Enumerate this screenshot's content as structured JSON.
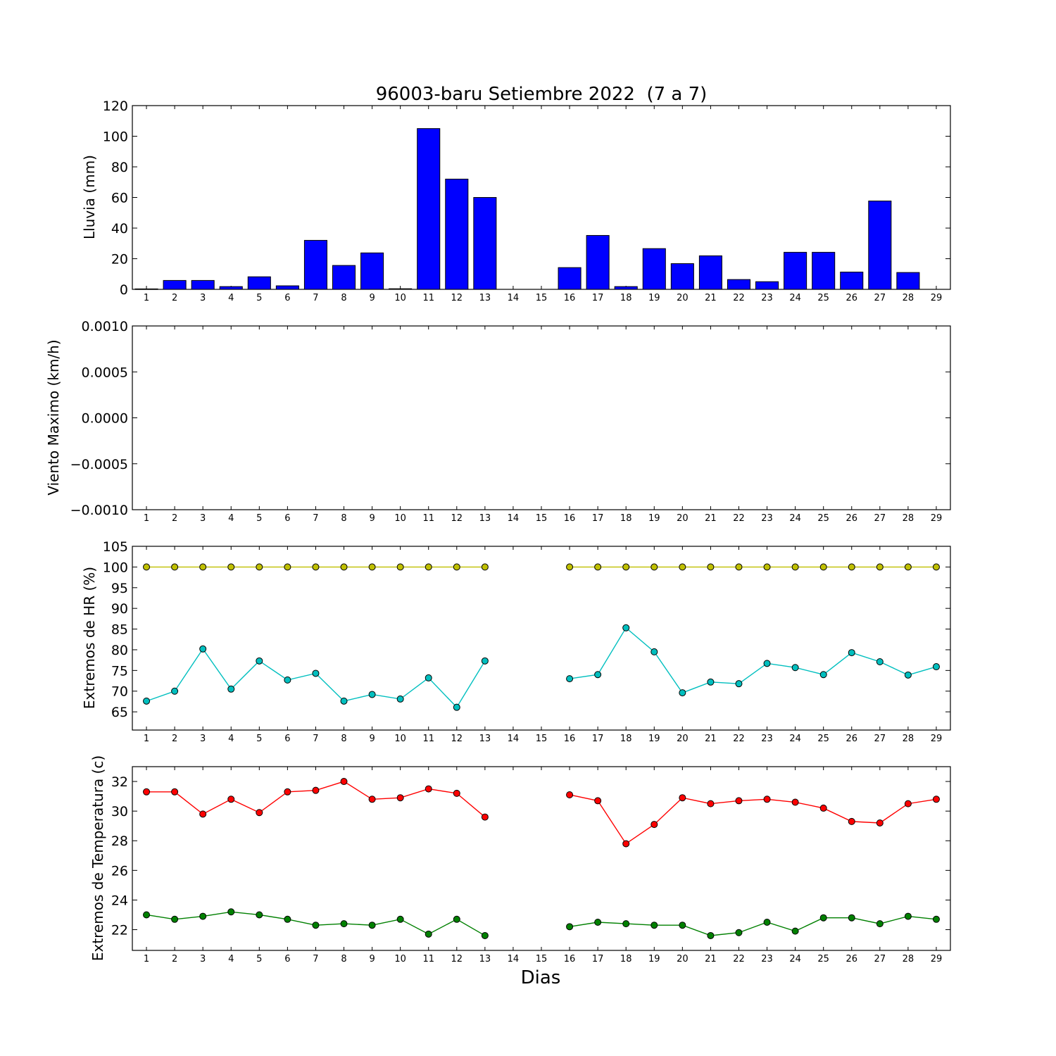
{
  "chart_data": [
    {
      "type": "bar",
      "title": "96003-baru Setiembre 2022  (7 a 7)",
      "ylabel": "Lluvia (mm)",
      "xlabel": "",
      "ylim": [
        0,
        120
      ],
      "yticks": [
        "0",
        "20",
        "40",
        "60",
        "80",
        "100",
        "120"
      ],
      "categories": [
        1,
        2,
        3,
        4,
        5,
        6,
        7,
        8,
        9,
        10,
        11,
        12,
        13,
        14,
        15,
        16,
        17,
        18,
        19,
        20,
        21,
        22,
        23,
        24,
        25,
        26,
        27,
        28,
        29
      ],
      "series": [
        {
          "color": "#0000ff",
          "values": [
            0.3,
            5.8,
            5.8,
            1.8,
            8.2,
            2.3,
            32.0,
            15.6,
            23.8,
            0.4,
            105.0,
            72.0,
            60.0,
            null,
            null,
            14.2,
            35.2,
            1.8,
            26.6,
            16.8,
            21.9,
            6.4,
            5.0,
            24.2,
            24.2,
            11.3,
            57.7,
            11.0,
            null
          ]
        }
      ],
      "grid": false
    },
    {
      "type": "line",
      "title": "",
      "ylabel": "Viento Maximo (km/h)",
      "xlabel": "",
      "ylim": [
        -0.001,
        0.001
      ],
      "yticks": [
        "−0.0010",
        "−0.0005",
        "0.0000",
        "0.0005",
        "0.0010"
      ],
      "categories": [
        1,
        2,
        3,
        4,
        5,
        6,
        7,
        8,
        9,
        10,
        11,
        12,
        13,
        14,
        15,
        16,
        17,
        18,
        19,
        20,
        21,
        22,
        23,
        24,
        25,
        26,
        27,
        28,
        29
      ],
      "series": [],
      "grid": false
    },
    {
      "type": "line",
      "title": "",
      "ylabel": "Extremos de HR (%)",
      "xlabel": "",
      "ylim": [
        60.6,
        105
      ],
      "yticks": [
        "65",
        "70",
        "75",
        "80",
        "85",
        "90",
        "95",
        "100",
        "105"
      ],
      "categories": [
        1,
        2,
        3,
        4,
        5,
        6,
        7,
        8,
        9,
        10,
        11,
        12,
        13,
        14,
        15,
        16,
        17,
        18,
        19,
        20,
        21,
        22,
        23,
        24,
        25,
        26,
        27,
        28,
        29
      ],
      "series": [
        {
          "color": "#bfbf00",
          "values": [
            100,
            100,
            100,
            100,
            100,
            100,
            100,
            100,
            100,
            100,
            100,
            100,
            100,
            null,
            null,
            100,
            100,
            100,
            100,
            100,
            100,
            100,
            100,
            100,
            100,
            100,
            100,
            100,
            100
          ]
        },
        {
          "color": "#00bfbf",
          "values": [
            67.6,
            70.0,
            80.2,
            70.5,
            77.3,
            72.7,
            74.3,
            67.6,
            69.2,
            68.1,
            73.2,
            66.1,
            77.3,
            null,
            null,
            73.0,
            74.0,
            85.3,
            79.5,
            69.6,
            72.2,
            71.8,
            76.7,
            75.7,
            74.0,
            79.3,
            77.1,
            73.9,
            75.9
          ]
        }
      ],
      "grid": false
    },
    {
      "type": "line",
      "title": "",
      "ylabel": "Extremos de Temperatura (c)",
      "xlabel": "Dias",
      "ylim": [
        20.6,
        33
      ],
      "yticks": [
        "22",
        "24",
        "26",
        "28",
        "30",
        "32"
      ],
      "categories": [
        1,
        2,
        3,
        4,
        5,
        6,
        7,
        8,
        9,
        10,
        11,
        12,
        13,
        14,
        15,
        16,
        17,
        18,
        19,
        20,
        21,
        22,
        23,
        24,
        25,
        26,
        27,
        28,
        29
      ],
      "series": [
        {
          "color": "#ff0000",
          "values": [
            31.3,
            31.3,
            29.8,
            30.8,
            29.9,
            31.3,
            31.4,
            32.0,
            30.8,
            30.9,
            31.5,
            31.2,
            29.6,
            null,
            null,
            31.1,
            30.7,
            27.8,
            29.1,
            30.9,
            30.5,
            30.7,
            30.8,
            30.6,
            30.2,
            29.3,
            29.2,
            30.5,
            30.8
          ]
        },
        {
          "color": "#008000",
          "values": [
            23.0,
            22.7,
            22.9,
            23.2,
            23.0,
            22.7,
            22.3,
            22.4,
            22.3,
            22.7,
            21.7,
            22.7,
            21.6,
            null,
            null,
            22.2,
            22.5,
            22.4,
            22.3,
            22.3,
            21.6,
            21.8,
            22.5,
            21.9,
            22.8,
            22.8,
            22.4,
            22.9,
            22.7
          ]
        }
      ],
      "grid": false
    }
  ]
}
